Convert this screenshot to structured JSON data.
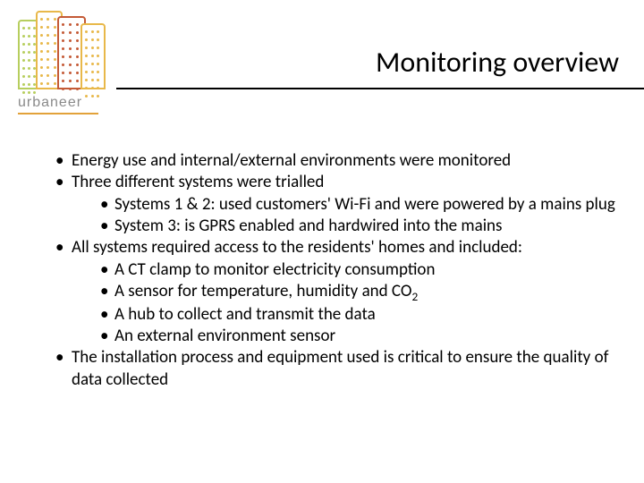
{
  "logo": {
    "text": "urbaneer"
  },
  "title": "Monitoring overview",
  "bullets": {
    "b1": "Energy use and internal/external environments were monitored",
    "b2": "Three different systems were trialled",
    "b2a": "Systems 1 & 2: used customers' Wi-Fi and were powered by a mains plug",
    "b2b": "System 3: is GPRS enabled and hardwired into the mains",
    "b3": "All systems required access to the residents' homes and included:",
    "b3a": "A CT clamp to monitor electricity consumption",
    "b3b_pre": "A sensor for temperature, humidity and CO",
    "b3b_sub": "2",
    "b3c": "A hub to collect and transmit the data",
    "b3d": "An external environment sensor",
    "b4": "The installation process and equipment used is critical to ensure the quality of data collected"
  },
  "style": {
    "page_bg": "#ffffff",
    "text_color": "#000000",
    "title_fontsize": 32,
    "body_fontsize": 19,
    "rule_color": "#000000",
    "logo_underline_color": "#e2a23a",
    "logo_text_color": "#8a8a8a",
    "building_colors": [
      "#b7ce5e",
      "#e8b84a",
      "#c45a36",
      "#e8b84a"
    ]
  }
}
